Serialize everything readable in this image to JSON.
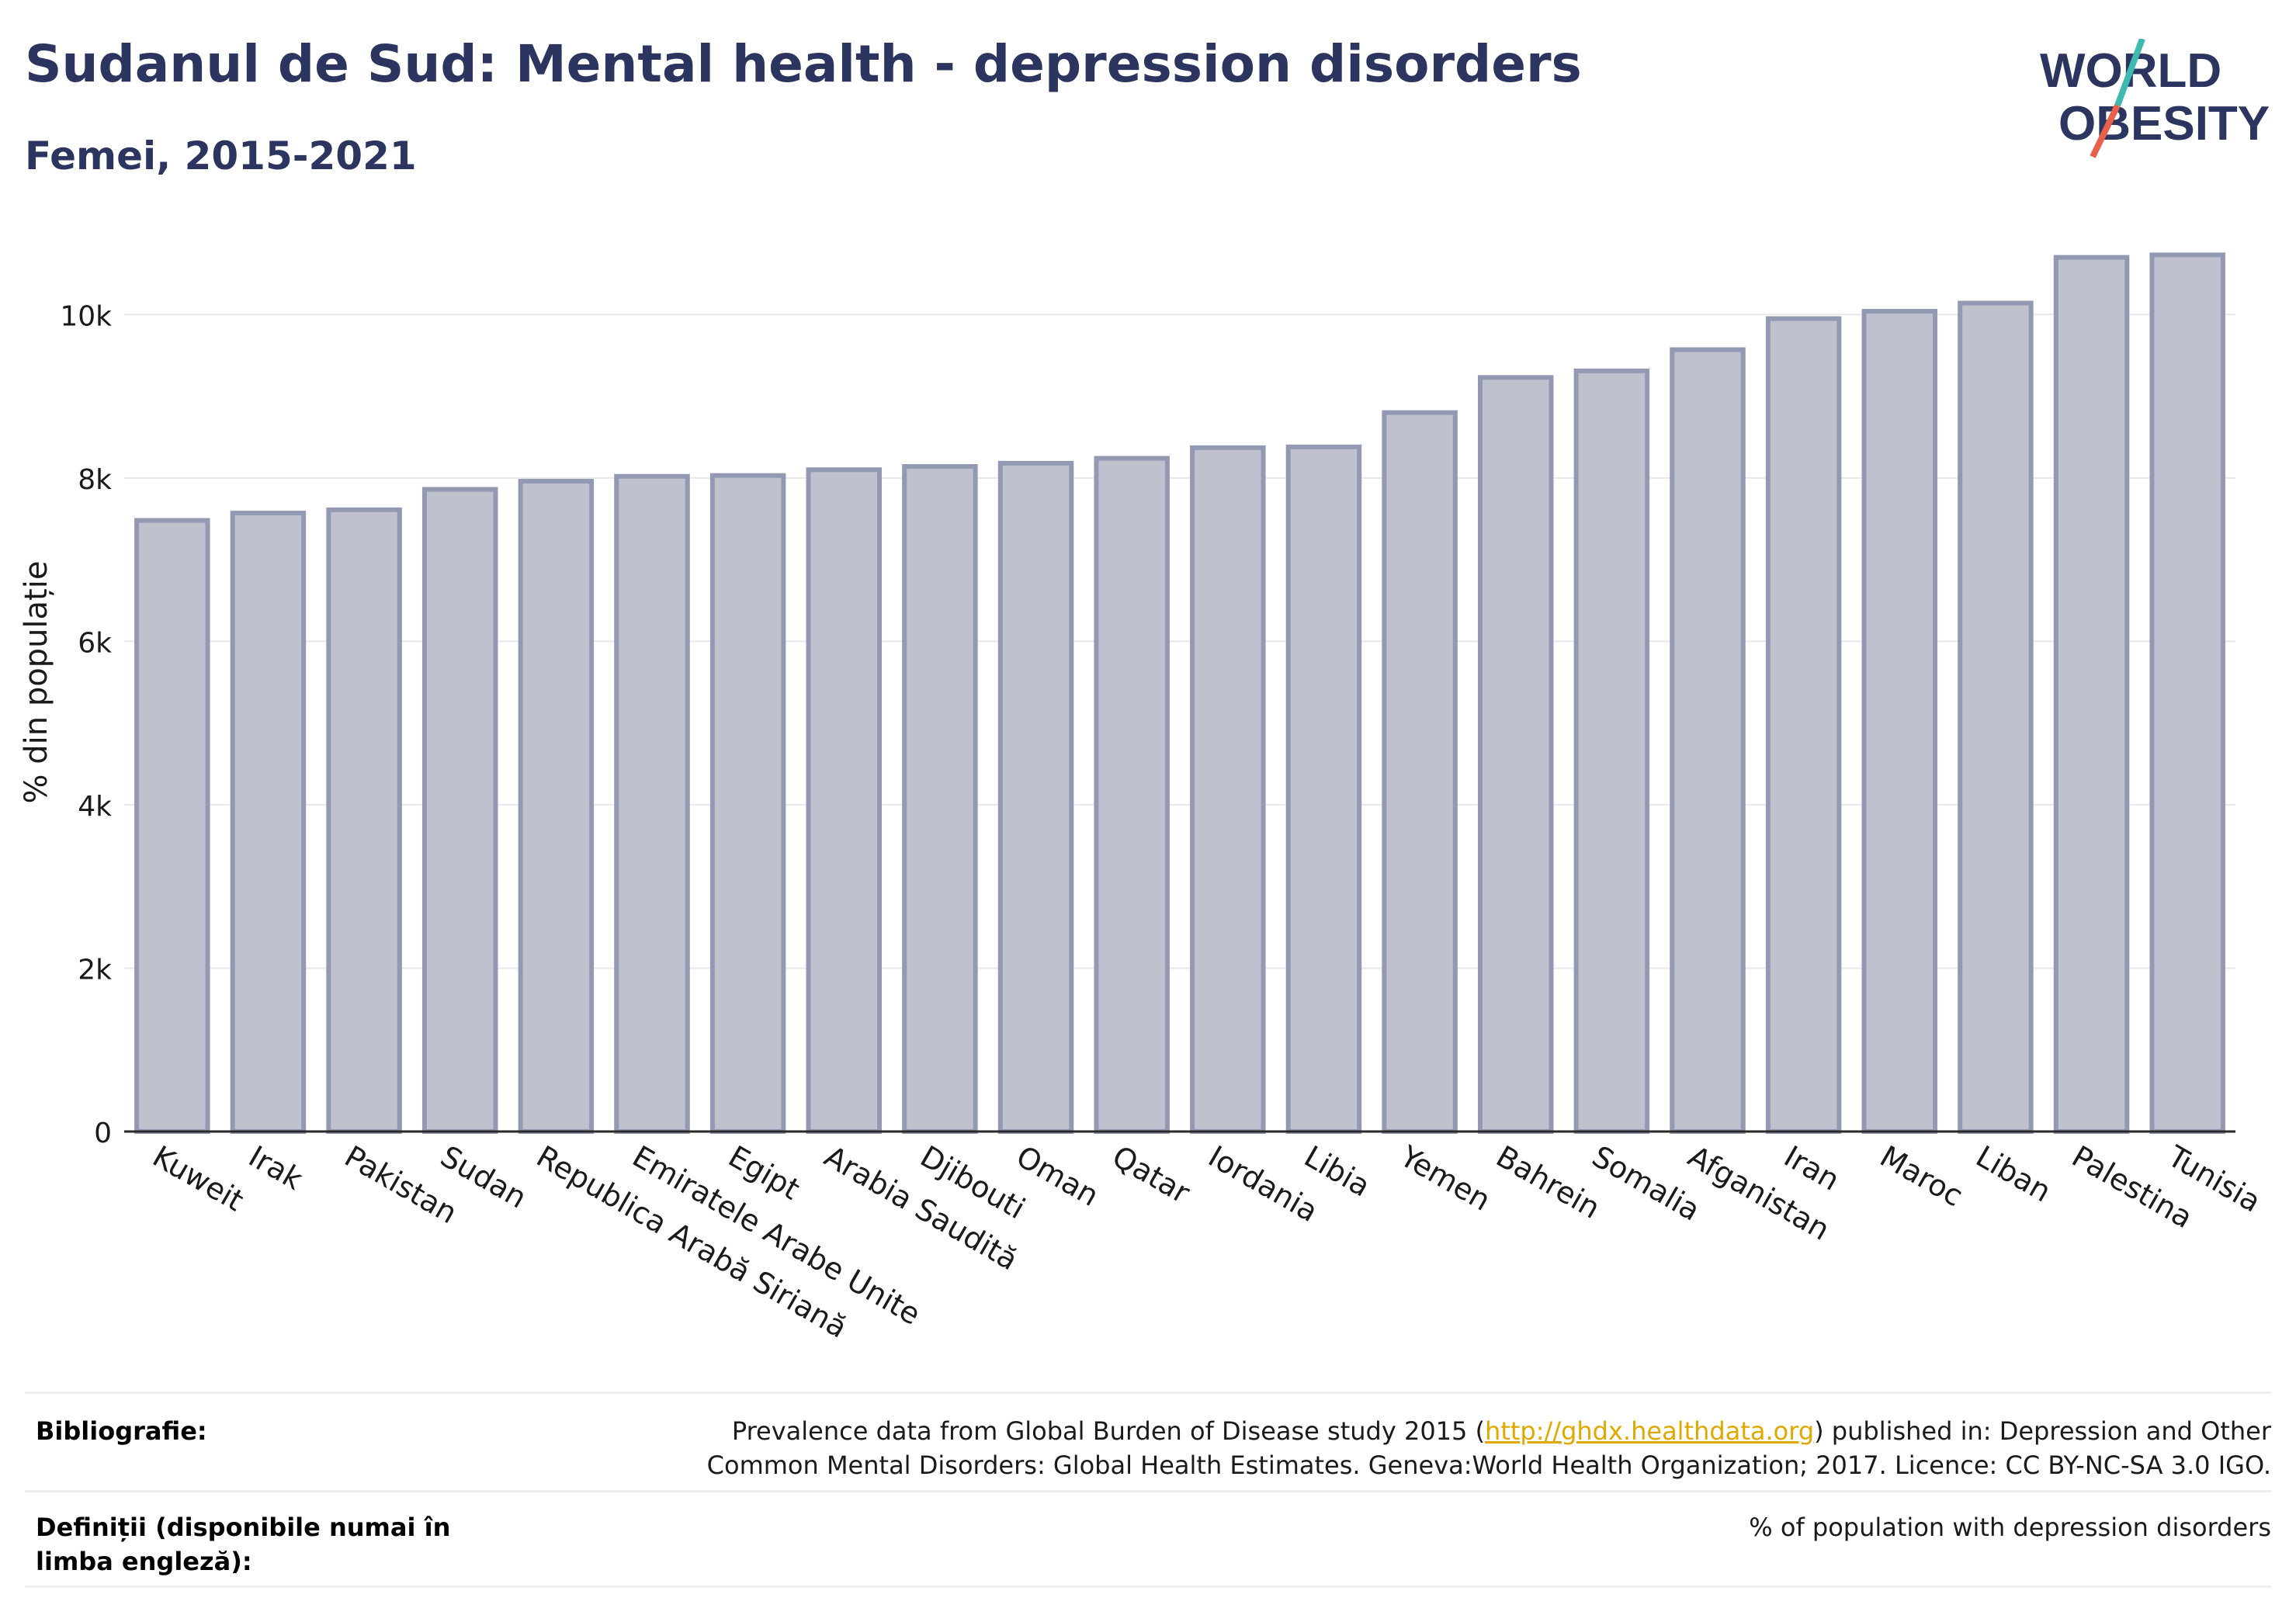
{
  "header": {
    "title": "Sudanul de Sud: Mental health - depression disorders",
    "subtitle": "Femei, 2015-2021"
  },
  "logo": {
    "line1": "WORLD",
    "line2": "OBESITY",
    "colors": {
      "text": "#2c3560",
      "slash_top": "#3fb8b0",
      "slash_bottom": "#e8604c"
    }
  },
  "chart_data": {
    "type": "bar",
    "title": "Sudanul de Sud: Mental health - depression disorders",
    "subtitle": "Femei, 2015-2021",
    "ylabel": "% din populație",
    "xlabel": "",
    "ylim": [
      0,
      11000
    ],
    "yticks": [
      0,
      2000,
      4000,
      6000,
      8000,
      10000
    ],
    "ytick_labels": [
      "0",
      "2k",
      "4k",
      "6k",
      "8k",
      "10k"
    ],
    "grid": true,
    "bar_fill": "#bfc1ce",
    "bar_stroke": "#9499b3",
    "categories": [
      "Kuweit",
      "Irak",
      "Pakistan",
      "Sudan",
      "Republica Arabă Siriană",
      "Emiratele Arabe Unite",
      "Egipt",
      "Arabia Saudită",
      "Djibouti",
      "Oman",
      "Qatar",
      "Iordania",
      "Libia",
      "Yemen",
      "Bahrein",
      "Somalia",
      "Afganistan",
      "Iran",
      "Maroc",
      "Liban",
      "Palestina",
      "Tunisia"
    ],
    "values": [
      7480,
      7570,
      7610,
      7860,
      7960,
      8020,
      8030,
      8100,
      8140,
      8180,
      8240,
      8370,
      8380,
      8800,
      9230,
      9310,
      9570,
      9950,
      10040,
      10140,
      10700,
      10730
    ]
  },
  "footer": {
    "bibliography_label": "Bibliografie:",
    "bibliography_pre": "Prevalence data from Global Burden of Disease study 2015 (",
    "bibliography_link": "http://ghdx.healthdata.org",
    "bibliography_post": ") published in: Depression and Other Common Mental Disorders: Global Health Estimates. Geneva:World Health Organization; 2017. Licence: CC BY-NC-SA 3.0 IGO.",
    "definitions_label": "Definiții (disponibile numai în limba engleză):",
    "definitions_text": "% of population with depression disorders"
  }
}
